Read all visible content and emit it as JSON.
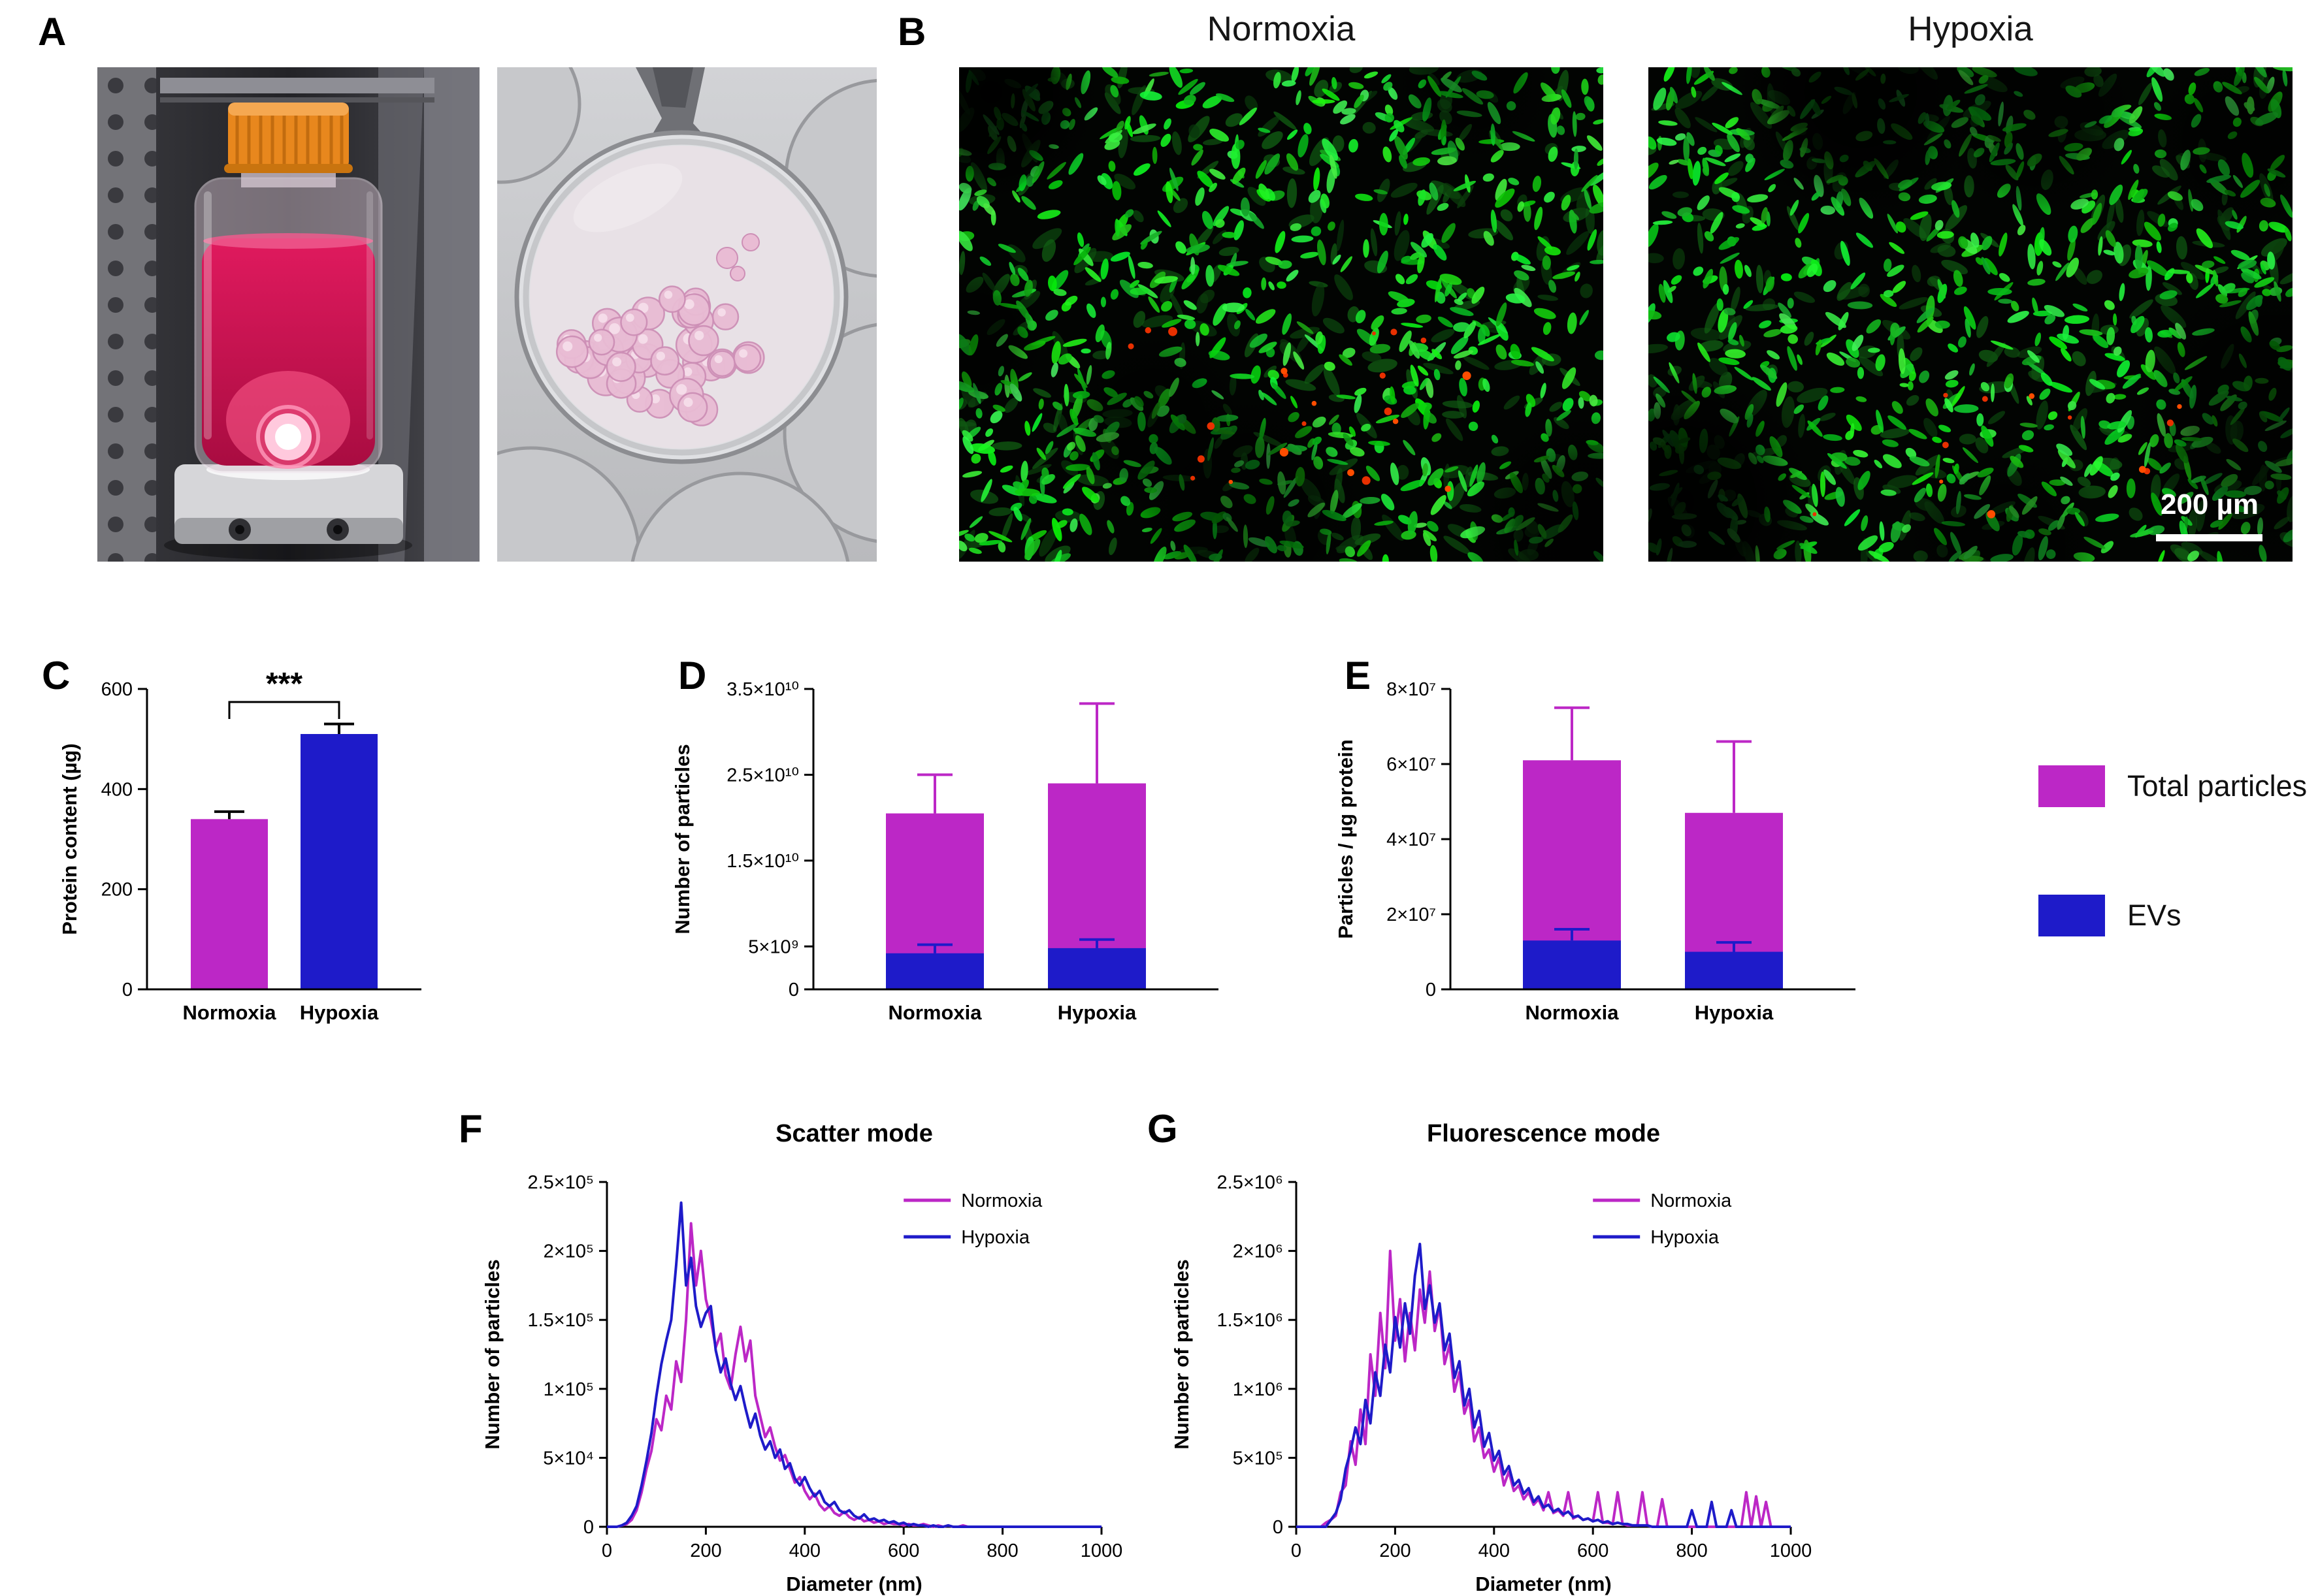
{
  "figure": {
    "panels": {
      "A": {
        "label": "A"
      },
      "B": {
        "label": "B",
        "image_titles": [
          "Normoxia",
          "Hypoxia"
        ],
        "scale_bar_label": "200 µm"
      },
      "C": {
        "label": "C"
      },
      "D": {
        "label": "D"
      },
      "E": {
        "label": "E"
      },
      "F": {
        "label": "F"
      },
      "G": {
        "label": "G"
      }
    },
    "legend": {
      "items": [
        {
          "label": "Total particles",
          "color": "#BC27C6"
        },
        {
          "label": "EVs",
          "color": "#1E1BC9"
        }
      ]
    },
    "colors": {
      "normoxia_magenta": "#BC27C6",
      "hypoxia_blue": "#1E1BC9"
    }
  },
  "chart_data": [
    {
      "id": "C",
      "type": "bar",
      "ylabel": "Protein content (µg)",
      "categories": [
        "Normoxia",
        "Hypoxia"
      ],
      "values": [
        340,
        510
      ],
      "errors": [
        15,
        20
      ],
      "bar_colors": [
        "#BC27C6",
        "#1E1BC9"
      ],
      "error_color": "#000000",
      "ylim": [
        0,
        600
      ],
      "yticks": [
        0,
        200,
        400,
        600
      ],
      "ytick_labels": [
        "0",
        "200",
        "400",
        "600"
      ],
      "significance": "***"
    },
    {
      "id": "D",
      "type": "bar",
      "ylabel": "Number of particles",
      "categories": [
        "Normoxia",
        "Hypoxia"
      ],
      "series": [
        {
          "name": "Total particles",
          "color": "#BC27C6",
          "values": [
            20500000000.0,
            24000000000.0
          ],
          "errors": [
            4500000000.0,
            9300000000.0
          ]
        },
        {
          "name": "EVs",
          "color": "#1E1BC9",
          "values": [
            4200000000.0,
            4800000000.0
          ],
          "errors": [
            1000000000.0,
            1000000000.0
          ]
        }
      ],
      "ylim": [
        0,
        35000000000.0
      ],
      "yticks": [
        0,
        5000000000.0,
        15000000000.0,
        25000000000.0,
        35000000000.0
      ],
      "ytick_labels": [
        "0",
        "5×10⁹",
        "1.5×10¹⁰",
        "2.5×10¹⁰",
        "3.5×10¹⁰"
      ]
    },
    {
      "id": "E",
      "type": "bar",
      "ylabel": "Particles / µg protein",
      "categories": [
        "Normoxia",
        "Hypoxia"
      ],
      "series": [
        {
          "name": "Total particles",
          "color": "#BC27C6",
          "values": [
            61000000.0,
            47000000.0
          ],
          "errors": [
            14000000.0,
            19000000.0
          ]
        },
        {
          "name": "EVs",
          "color": "#1E1BC9",
          "values": [
            13000000.0,
            10000000.0
          ],
          "errors": [
            3000000.0,
            2500000.0
          ]
        }
      ],
      "ylim": [
        0,
        80000000.0
      ],
      "yticks": [
        0,
        20000000.0,
        40000000.0,
        60000000.0,
        80000000.0
      ],
      "ytick_labels": [
        "0",
        "2×10⁷",
        "4×10⁷",
        "6×10⁷",
        "8×10⁷"
      ]
    },
    {
      "id": "F",
      "type": "line",
      "title": "Scatter mode",
      "xlabel": "Diameter (nm)",
      "ylabel": "Number of particles",
      "xlim": [
        0,
        1000
      ],
      "ylim": [
        0,
        250000.0
      ],
      "x_step": 10,
      "xticks": [
        0,
        200,
        400,
        600,
        800,
        1000
      ],
      "yticks": [
        0,
        50000.0,
        100000.0,
        150000.0,
        200000.0,
        250000.0
      ],
      "ytick_labels": [
        "0",
        "5×10⁴",
        "1×10⁵",
        "1.5×10⁵",
        "2×10⁵",
        "2.5×10⁵"
      ],
      "legend_position": "top-right",
      "series": [
        {
          "name": "Normoxia",
          "color": "#BC27C6",
          "values": [
            0,
            0,
            0,
            1000,
            2000,
            5000,
            12000,
            25000,
            42000,
            55000,
            78000,
            70000,
            95000,
            85000,
            120000,
            105000,
            150000,
            220000,
            175000,
            200000,
            165000,
            150000,
            130000,
            140000,
            110000,
            100000,
            125000,
            145000,
            120000,
            135000,
            95000,
            80000,
            65000,
            72000,
            58000,
            48000,
            52000,
            42000,
            32000,
            36000,
            26000,
            20000,
            24000,
            16000,
            12000,
            15000,
            10000,
            8000,
            11000,
            7000,
            5000,
            7000,
            4000,
            5000,
            3000,
            4000,
            2000,
            3000,
            2000,
            2000,
            1000,
            2000,
            1000,
            1000,
            2000,
            1000,
            0,
            1000,
            0,
            1000,
            0,
            0,
            1000,
            0,
            0,
            0,
            0,
            0,
            0,
            0,
            0,
            0,
            0,
            0,
            0,
            0,
            0,
            0,
            0,
            0,
            0,
            0,
            0,
            0,
            0,
            0,
            0,
            0,
            0,
            0,
            0
          ]
        },
        {
          "name": "Hypoxia",
          "color": "#1E1BC9",
          "values": [
            0,
            0,
            0,
            1000,
            3000,
            8000,
            15000,
            30000,
            48000,
            68000,
            95000,
            118000,
            135000,
            150000,
            190000,
            235000,
            175000,
            195000,
            160000,
            145000,
            155000,
            160000,
            128000,
            112000,
            122000,
            104000,
            92000,
            102000,
            86000,
            72000,
            82000,
            66000,
            56000,
            62000,
            50000,
            56000,
            42000,
            46000,
            35000,
            30000,
            36000,
            28000,
            22000,
            26000,
            18000,
            15000,
            18000,
            12000,
            10000,
            12000,
            8000,
            6000,
            9000,
            5000,
            6000,
            4000,
            5000,
            3000,
            4000,
            2000,
            3000,
            1000,
            2000,
            1000,
            1000,
            0,
            1000,
            0,
            0,
            1000,
            0,
            0,
            0,
            0,
            0,
            0,
            0,
            0,
            0,
            0,
            0,
            0,
            0,
            0,
            0,
            0,
            0,
            0,
            0,
            0,
            0,
            0,
            0,
            0,
            0,
            0,
            0,
            0,
            0,
            0,
            0
          ]
        }
      ]
    },
    {
      "id": "G",
      "type": "line",
      "title": "Fluorescence mode",
      "xlabel": "Diameter (nm)",
      "ylabel": "Number of particles",
      "xlim": [
        0,
        1000
      ],
      "ylim": [
        0,
        2500000.0
      ],
      "x_step": 10,
      "xticks": [
        0,
        200,
        400,
        600,
        800,
        1000
      ],
      "yticks": [
        0,
        500000.0,
        1000000.0,
        1500000.0,
        2000000.0,
        2500000.0
      ],
      "ytick_labels": [
        "0",
        "5×10⁵",
        "1×10⁶",
        "1.5×10⁶",
        "2×10⁶",
        "2.5×10⁶"
      ],
      "legend_position": "top-right",
      "series": [
        {
          "name": "Normoxia",
          "color": "#BC27C6",
          "values": [
            0,
            0,
            0,
            0,
            0,
            0,
            30000,
            50000,
            80000,
            250000,
            300000,
            620000,
            450000,
            850000,
            600000,
            1250000,
            950000,
            1550000,
            1150000,
            2000000,
            1350000,
            1650000,
            1200000,
            1550000,
            1280000,
            1720000,
            1480000,
            1850000,
            1420000,
            1600000,
            1180000,
            1320000,
            980000,
            1120000,
            820000,
            920000,
            620000,
            720000,
            500000,
            560000,
            400000,
            500000,
            300000,
            400000,
            260000,
            300000,
            200000,
            250000,
            160000,
            200000,
            120000,
            250000,
            100000,
            120000,
            80000,
            250000,
            60000,
            80000,
            50000,
            60000,
            40000,
            250000,
            30000,
            30000,
            20000,
            250000,
            20000,
            10000,
            10000,
            10000,
            250000,
            10000,
            0,
            0,
            200000,
            0,
            0,
            0,
            0,
            0,
            0,
            0,
            0,
            0,
            0,
            0,
            0,
            0,
            0,
            0,
            0,
            250000,
            0,
            220000,
            0,
            180000,
            0,
            0,
            0,
            0,
            0
          ]
        },
        {
          "name": "Hypoxia",
          "color": "#1E1BC9",
          "values": [
            0,
            0,
            0,
            0,
            0,
            0,
            0,
            50000,
            100000,
            200000,
            420000,
            550000,
            720000,
            600000,
            920000,
            750000,
            1120000,
            950000,
            1320000,
            1120000,
            1520000,
            1300000,
            1620000,
            1400000,
            1820000,
            2050000,
            1580000,
            1750000,
            1480000,
            1620000,
            1280000,
            1400000,
            1080000,
            1200000,
            880000,
            1000000,
            720000,
            840000,
            580000,
            680000,
            480000,
            550000,
            380000,
            440000,
            300000,
            340000,
            240000,
            280000,
            180000,
            220000,
            140000,
            160000,
            110000,
            130000,
            90000,
            110000,
            70000,
            80000,
            50000,
            60000,
            40000,
            50000,
            30000,
            40000,
            20000,
            30000,
            20000,
            20000,
            10000,
            10000,
            10000,
            10000,
            0,
            0,
            0,
            0,
            0,
            0,
            0,
            0,
            120000,
            0,
            0,
            0,
            180000,
            0,
            0,
            0,
            120000,
            0,
            0,
            0,
            0,
            0,
            0,
            0,
            0,
            0,
            0,
            0,
            0
          ]
        }
      ]
    }
  ]
}
